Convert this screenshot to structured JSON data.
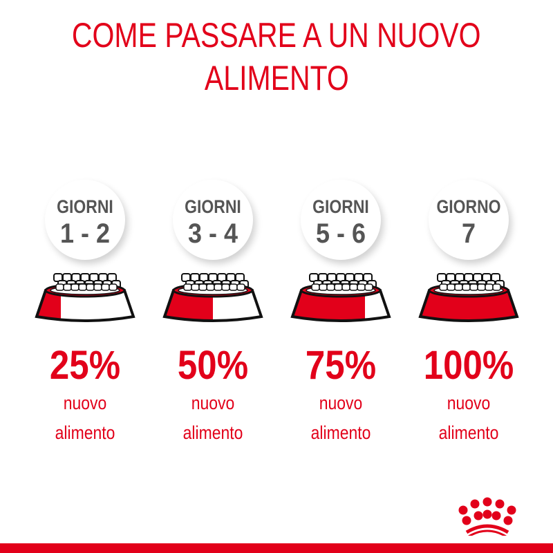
{
  "title": [
    "COME PASSARE A UN NUOVO",
    "ALIMENTO"
  ],
  "brand_color": "#e2001a",
  "steps": [
    {
      "label": "GIORNI",
      "days": "1 - 2",
      "percent": "25%",
      "line1": "nuovo",
      "line2": "alimento",
      "new_food_fraction": 0.25
    },
    {
      "label": "GIORNI",
      "days": "3 - 4",
      "percent": "50%",
      "line1": "nuovo",
      "line2": "alimento",
      "new_food_fraction": 0.5
    },
    {
      "label": "GIORNI",
      "days": "5 - 6",
      "percent": "75%",
      "line1": "nuovo",
      "line2": "alimento",
      "new_food_fraction": 0.75
    },
    {
      "label": "GIORNO",
      "days": "7",
      "percent": "100%",
      "line1": "nuovo",
      "line2": "alimento",
      "new_food_fraction": 1.0
    }
  ],
  "logo": "royal-canin-crown-logo"
}
